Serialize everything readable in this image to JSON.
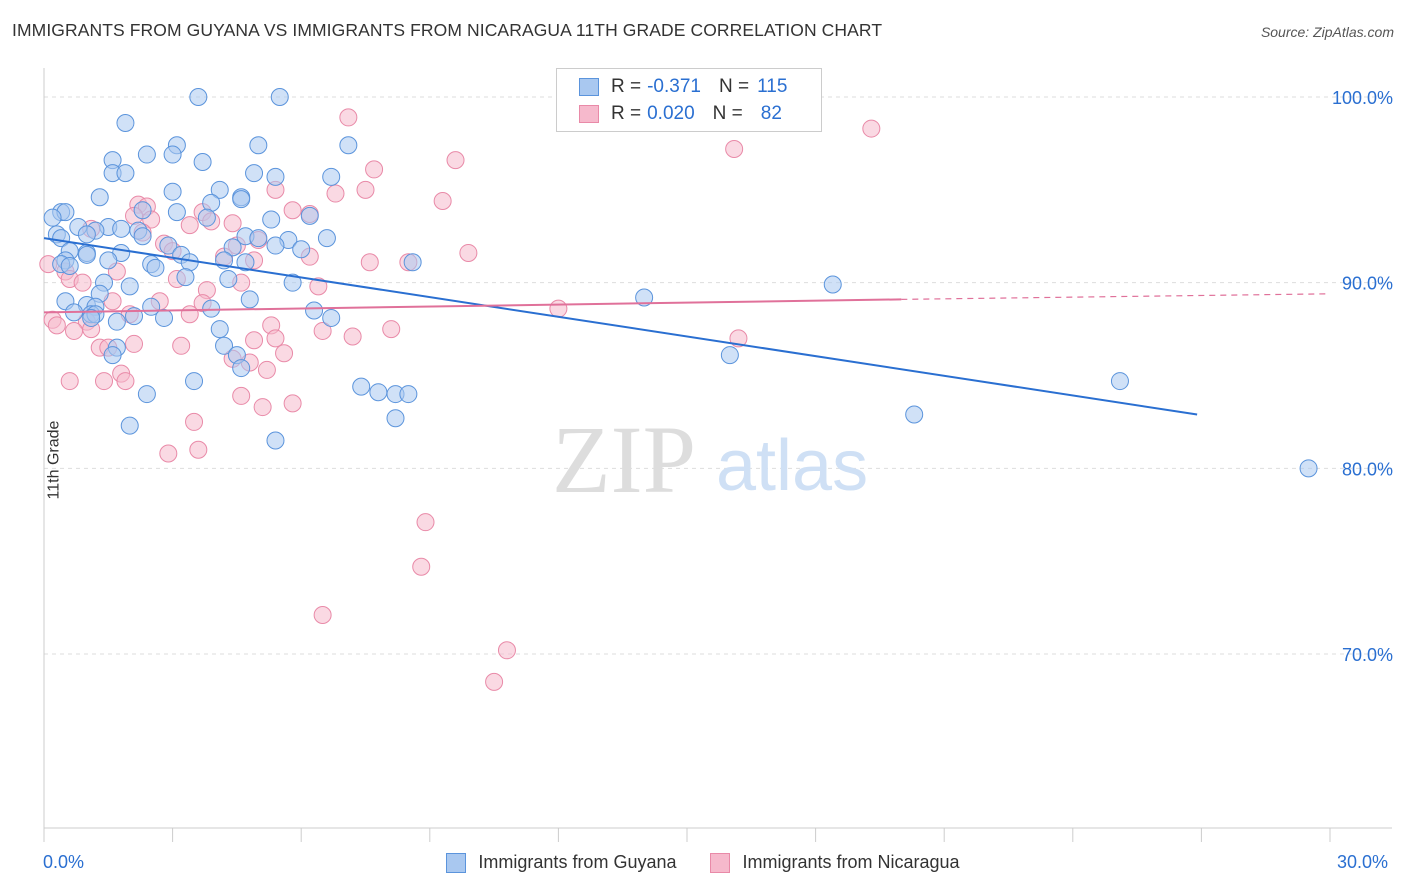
{
  "title": "IMMIGRANTS FROM GUYANA VS IMMIGRANTS FROM NICARAGUA 11TH GRADE CORRELATION CHART",
  "source": "Source: ZipAtlas.com",
  "watermark": {
    "zip": "ZIP",
    "atlas": "atlas"
  },
  "legend": {
    "rows": [
      {
        "r_label": "R =",
        "r_value": "-0.371",
        "n_label": "N =",
        "n_value": "115"
      },
      {
        "r_label": "R =",
        "r_value": "0.020",
        "n_label": "N =",
        "n_value": "82"
      }
    ]
  },
  "colors": {
    "guyana_fill": "#a9c8f0",
    "guyana_stroke": "#5b94dc",
    "guyana_line": "#2a6fd1",
    "nicaragua_fill": "#f6b9cc",
    "nicaragua_stroke": "#e98aa8",
    "nicaragua_line": "#e0719a",
    "axis_text": "#2a6fd1"
  },
  "chart_data": {
    "type": "scatter",
    "title": "IMMIGRANTS FROM GUYANA VS IMMIGRANTS FROM NICARAGUA 11TH GRADE CORRELATION CHART",
    "xlabel": "",
    "ylabel": "11th Grade",
    "xlim": [
      0,
      30
    ],
    "ylim": [
      60.5,
      101.5
    ],
    "x_tick_labels": [
      "0.0%",
      "30.0%"
    ],
    "y_tick_labels": [
      "100.0%",
      "90.0%",
      "80.0%",
      "70.0%"
    ],
    "y_ticks": [
      100,
      90,
      80,
      70
    ],
    "grid": "horizontal dashed",
    "legend_position": "bottom",
    "series": [
      {
        "name": "Immigrants from Guyana",
        "R": -0.371,
        "N": 115,
        "trend": {
          "x": [
            0,
            26.9
          ],
          "y": [
            92.4,
            82.9
          ]
        },
        "points": [
          [
            3.6,
            100
          ],
          [
            5.5,
            100
          ],
          [
            1.9,
            98.6
          ],
          [
            5.0,
            97.4
          ],
          [
            3.1,
            97.4
          ],
          [
            7.1,
            97.4
          ],
          [
            2.4,
            96.9
          ],
          [
            3.0,
            96.9
          ],
          [
            1.6,
            96.6
          ],
          [
            3.7,
            96.5
          ],
          [
            1.6,
            95.9
          ],
          [
            1.9,
            95.9
          ],
          [
            4.9,
            95.9
          ],
          [
            5.4,
            95.7
          ],
          [
            6.7,
            95.7
          ],
          [
            3.0,
            94.9
          ],
          [
            4.1,
            95.0
          ],
          [
            4.6,
            94.6
          ],
          [
            1.3,
            94.6
          ],
          [
            3.9,
            94.3
          ],
          [
            4.6,
            94.5
          ],
          [
            2.3,
            93.9
          ],
          [
            0.4,
            93.8
          ],
          [
            0.5,
            93.8
          ],
          [
            3.1,
            93.8
          ],
          [
            3.8,
            93.5
          ],
          [
            6.2,
            93.6
          ],
          [
            0.2,
            93.5
          ],
          [
            5.3,
            93.4
          ],
          [
            0.8,
            93.0
          ],
          [
            1.5,
            93.0
          ],
          [
            1.8,
            92.9
          ],
          [
            1.2,
            92.8
          ],
          [
            2.2,
            92.8
          ],
          [
            1.0,
            92.6
          ],
          [
            0.3,
            92.6
          ],
          [
            0.4,
            92.4
          ],
          [
            2.3,
            92.5
          ],
          [
            4.7,
            92.5
          ],
          [
            5.0,
            92.4
          ],
          [
            6.6,
            92.4
          ],
          [
            5.7,
            92.3
          ],
          [
            2.9,
            92.0
          ],
          [
            4.4,
            91.9
          ],
          [
            5.4,
            92.0
          ],
          [
            0.6,
            91.7
          ],
          [
            1.0,
            91.6
          ],
          [
            1.8,
            91.6
          ],
          [
            3.2,
            91.5
          ],
          [
            6.0,
            91.8
          ],
          [
            1.0,
            91.5
          ],
          [
            0.5,
            91.2
          ],
          [
            4.2,
            91.2
          ],
          [
            0.4,
            91.0
          ],
          [
            1.5,
            91.2
          ],
          [
            3.4,
            91.1
          ],
          [
            4.7,
            91.1
          ],
          [
            2.5,
            91.0
          ],
          [
            2.6,
            90.8
          ],
          [
            8.6,
            91.1
          ],
          [
            0.6,
            90.9
          ],
          [
            3.3,
            90.3
          ],
          [
            4.3,
            90.2
          ],
          [
            5.8,
            90.0
          ],
          [
            1.4,
            90.0
          ],
          [
            2.0,
            89.8
          ],
          [
            18.4,
            89.9
          ],
          [
            1.3,
            89.4
          ],
          [
            4.8,
            89.1
          ],
          [
            0.5,
            89.0
          ],
          [
            1.0,
            88.8
          ],
          [
            14.0,
            89.2
          ],
          [
            1.2,
            88.7
          ],
          [
            2.5,
            88.7
          ],
          [
            3.9,
            88.6
          ],
          [
            0.7,
            88.4
          ],
          [
            1.1,
            88.3
          ],
          [
            6.3,
            88.5
          ],
          [
            1.2,
            88.3
          ],
          [
            2.1,
            88.2
          ],
          [
            1.1,
            88.1
          ],
          [
            2.8,
            88.1
          ],
          [
            6.7,
            88.1
          ],
          [
            1.7,
            87.9
          ],
          [
            4.1,
            87.5
          ],
          [
            4.2,
            86.6
          ],
          [
            1.7,
            86.5
          ],
          [
            1.6,
            86.1
          ],
          [
            4.5,
            86.1
          ],
          [
            16.0,
            86.1
          ],
          [
            4.6,
            85.4
          ],
          [
            3.5,
            84.7
          ],
          [
            7.4,
            84.4
          ],
          [
            7.8,
            84.1
          ],
          [
            8.2,
            84.0
          ],
          [
            8.5,
            84.0
          ],
          [
            2.4,
            84.0
          ],
          [
            25.1,
            84.7
          ],
          [
            20.3,
            82.9
          ],
          [
            8.2,
            82.7
          ],
          [
            2.0,
            82.3
          ],
          [
            5.4,
            81.5
          ],
          [
            29.5,
            80.0
          ]
        ]
      },
      {
        "name": "Immigrants from Nicaragua",
        "R": 0.02,
        "N": 82,
        "trend": {
          "x": [
            0,
            20.0
          ],
          "y": [
            88.4,
            89.1
          ]
        },
        "trend_dashed": {
          "x": [
            20.0,
            30
          ],
          "y": [
            89.1,
            89.4
          ]
        },
        "points": [
          [
            7.1,
            98.9
          ],
          [
            19.3,
            98.3
          ],
          [
            16.1,
            97.2
          ],
          [
            9.6,
            96.6
          ],
          [
            7.7,
            96.1
          ],
          [
            5.4,
            95.0
          ],
          [
            7.5,
            95.0
          ],
          [
            6.8,
            94.8
          ],
          [
            9.3,
            94.4
          ],
          [
            2.2,
            94.2
          ],
          [
            2.4,
            94.1
          ],
          [
            3.7,
            93.8
          ],
          [
            2.1,
            93.6
          ],
          [
            5.8,
            93.9
          ],
          [
            6.2,
            93.7
          ],
          [
            2.5,
            93.4
          ],
          [
            4.4,
            93.2
          ],
          [
            3.9,
            93.3
          ],
          [
            3.4,
            93.1
          ],
          [
            1.1,
            92.9
          ],
          [
            2.3,
            92.7
          ],
          [
            5.0,
            92.3
          ],
          [
            4.5,
            92.0
          ],
          [
            2.8,
            92.1
          ],
          [
            3.0,
            91.7
          ],
          [
            6.2,
            91.4
          ],
          [
            9.9,
            91.6
          ],
          [
            4.2,
            91.4
          ],
          [
            4.9,
            91.2
          ],
          [
            7.6,
            91.1
          ],
          [
            8.5,
            91.1
          ],
          [
            0.1,
            91.0
          ],
          [
            0.5,
            90.6
          ],
          [
            1.7,
            90.6
          ],
          [
            0.6,
            90.2
          ],
          [
            3.1,
            90.2
          ],
          [
            4.6,
            90.0
          ],
          [
            0.9,
            90.0
          ],
          [
            6.4,
            89.8
          ],
          [
            3.8,
            89.6
          ],
          [
            1.6,
            89.0
          ],
          [
            2.7,
            89.0
          ],
          [
            3.7,
            88.9
          ],
          [
            12.0,
            88.6
          ],
          [
            2.0,
            88.3
          ],
          [
            3.4,
            88.3
          ],
          [
            0.2,
            88.0
          ],
          [
            1.0,
            87.9
          ],
          [
            0.3,
            87.7
          ],
          [
            1.1,
            87.5
          ],
          [
            5.3,
            87.7
          ],
          [
            8.1,
            87.5
          ],
          [
            0.7,
            87.4
          ],
          [
            6.5,
            87.4
          ],
          [
            7.2,
            87.1
          ],
          [
            5.4,
            87.0
          ],
          [
            16.2,
            87.0
          ],
          [
            4.9,
            86.9
          ],
          [
            2.1,
            86.7
          ],
          [
            3.2,
            86.6
          ],
          [
            1.3,
            86.5
          ],
          [
            1.5,
            86.5
          ],
          [
            5.6,
            86.2
          ],
          [
            4.4,
            85.9
          ],
          [
            4.8,
            85.7
          ],
          [
            5.2,
            85.3
          ],
          [
            1.8,
            85.1
          ],
          [
            1.4,
            84.7
          ],
          [
            1.9,
            84.7
          ],
          [
            0.6,
            84.7
          ],
          [
            4.6,
            83.9
          ],
          [
            5.8,
            83.5
          ],
          [
            5.1,
            83.3
          ],
          [
            3.5,
            82.5
          ],
          [
            3.6,
            81.0
          ],
          [
            2.9,
            80.8
          ],
          [
            8.9,
            77.1
          ],
          [
            8.8,
            74.7
          ],
          [
            6.5,
            72.1
          ],
          [
            10.8,
            70.2
          ],
          [
            10.5,
            68.5
          ]
        ]
      }
    ]
  },
  "bottom_legend": {
    "guyana_label": "Immigrants from Guyana",
    "nicaragua_label": "Immigrants from Nicaragua"
  }
}
